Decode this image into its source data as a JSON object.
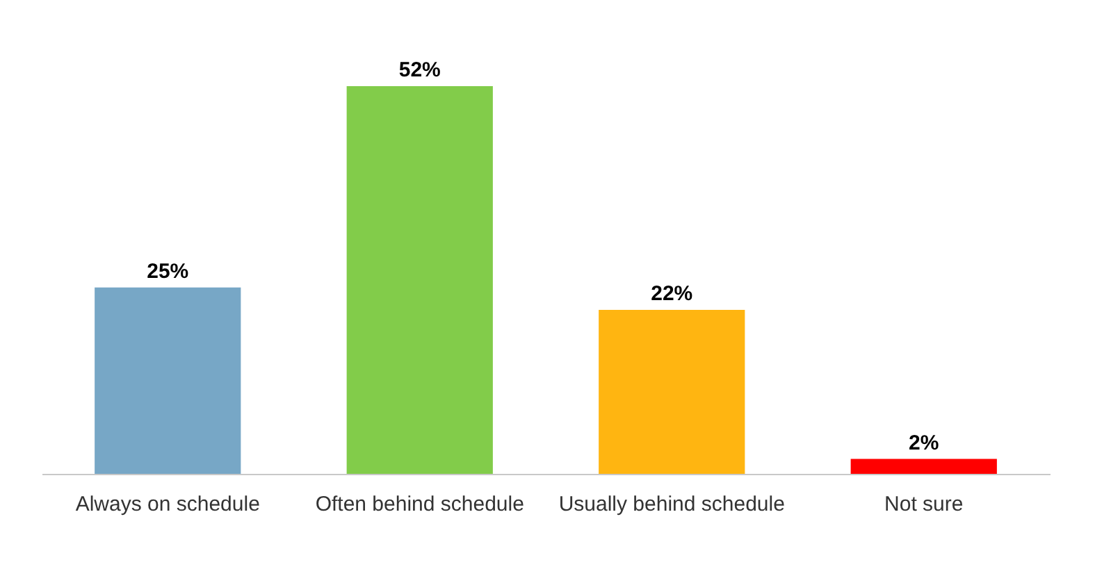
{
  "chart_data": {
    "type": "bar",
    "categories": [
      "Always on schedule",
      "Often behind schedule",
      "Usually behind schedule",
      "Not sure"
    ],
    "values": [
      25,
      52,
      22,
      2
    ],
    "colors": [
      "#77a7c6",
      "#82cc4a",
      "#ffb511",
      "#ff0000"
    ],
    "data_labels": true,
    "value_labels": [
      "25%",
      "52%",
      "22%",
      "2%"
    ],
    "grid": false,
    "legend": false
  }
}
